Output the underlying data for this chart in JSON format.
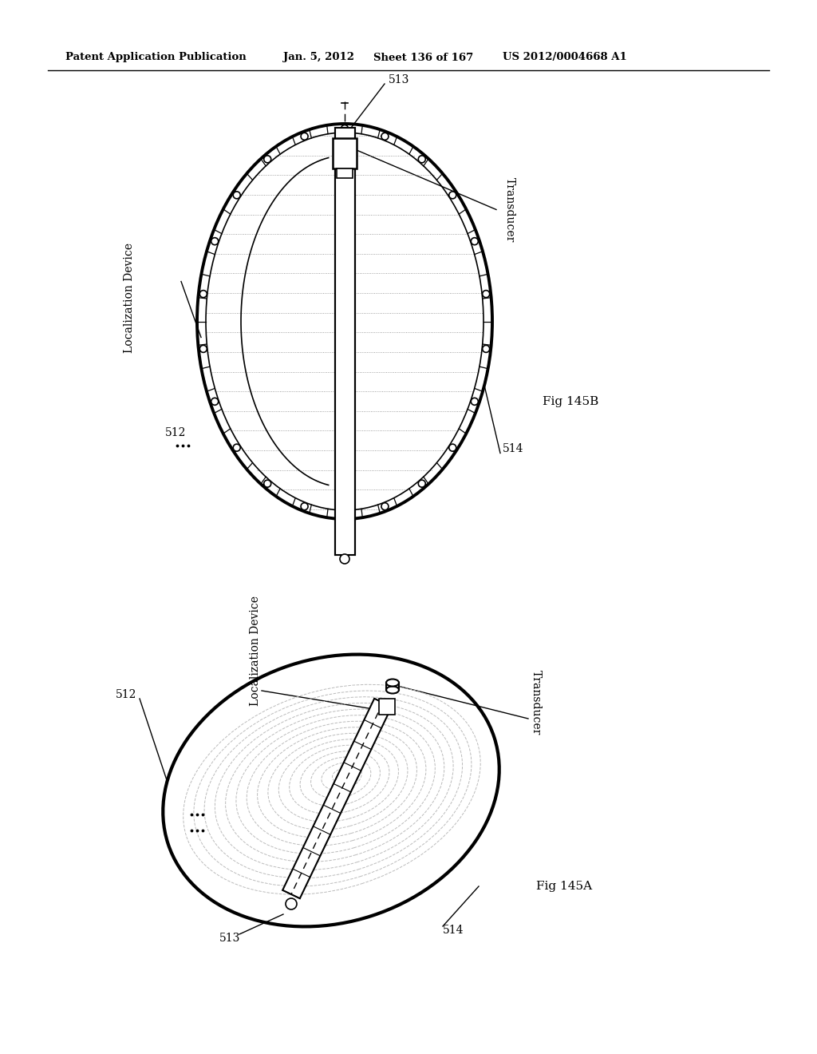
{
  "header_left": "Patent Application Publication",
  "header_date": "Jan. 5, 2012",
  "header_sheet": "Sheet 136 of 167",
  "header_patent": "US 2012/0004668 A1",
  "fig_top_label": "Fig 145B",
  "fig_bottom_label": "Fig 145A",
  "label_513_top": "513",
  "label_512_top": "512",
  "label_514_top": "514",
  "label_transducer_top": "Transducer",
  "label_localization_top": "Localization Device",
  "label_512_bot": "512",
  "label_513_bot": "513",
  "label_514_bot": "514",
  "label_transducer_bot": "Transducer",
  "label_localization_bot": "Localization Device",
  "bg_color": "#ffffff",
  "line_color": "#000000"
}
